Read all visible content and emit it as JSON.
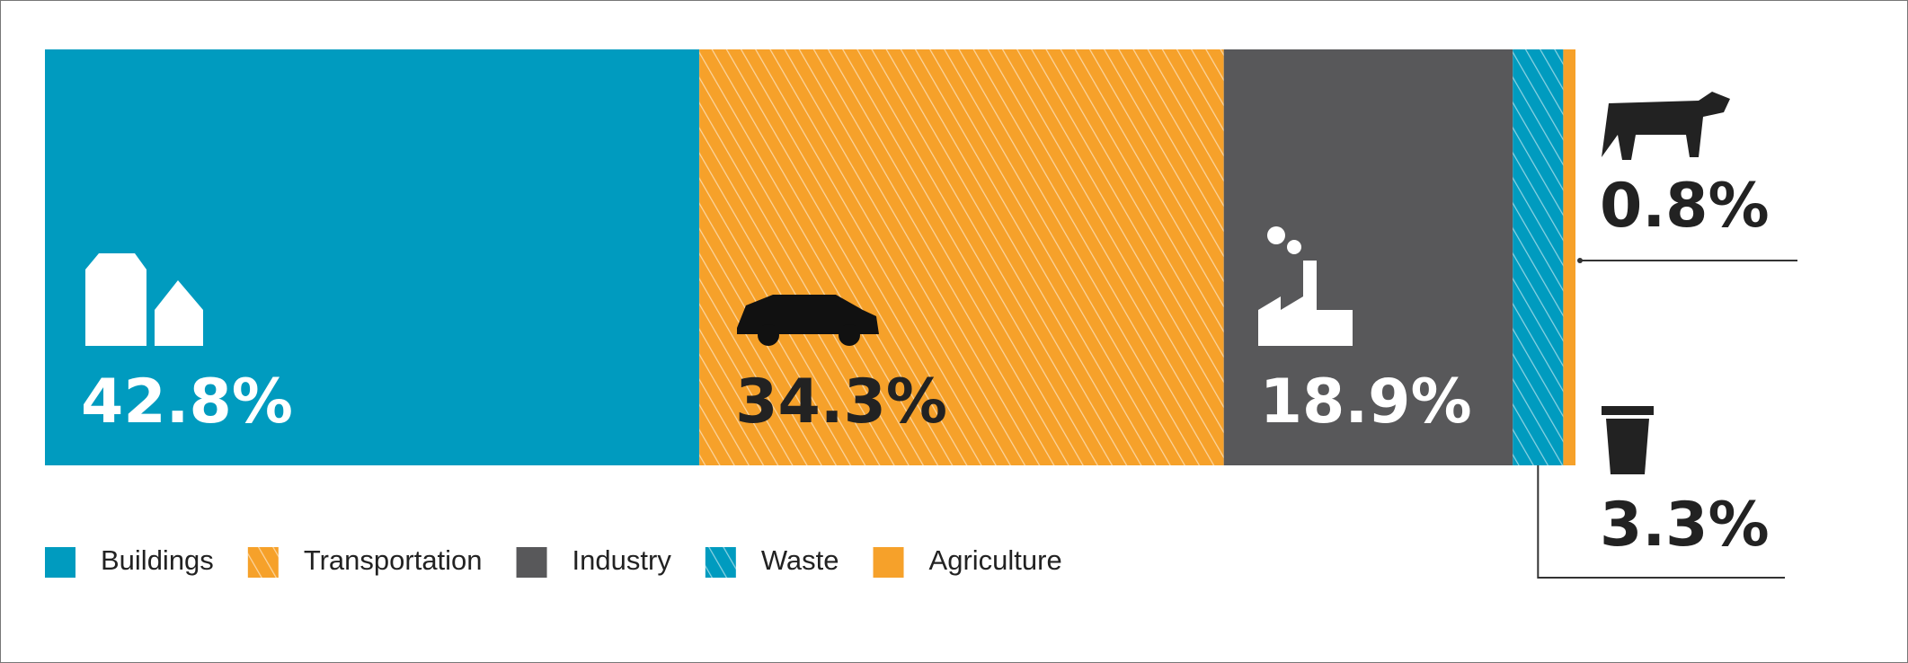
{
  "chart_data": {
    "type": "stacked-bar",
    "series": [
      {
        "name": "Buildings",
        "color": "#009bbf",
        "hatched": false,
        "values": [
          42.8
        ],
        "value_labels": [
          "42.8%"
        ]
      },
      {
        "name": "Transportation",
        "color": "#f6a12a",
        "hatched": true,
        "values": [
          34.3
        ],
        "value_labels": [
          "34.3%"
        ]
      },
      {
        "name": "Industry",
        "color": "#58585a",
        "hatched": false,
        "values": [
          18.9
        ],
        "value_labels": [
          "18.9%"
        ]
      },
      {
        "name": "Waste",
        "color": "#009bbf",
        "hatched": true,
        "values": [
          3.3
        ],
        "value_labels": [
          "3.3%"
        ]
      },
      {
        "name": "Agriculture",
        "color": "#f6a12a",
        "hatched": false,
        "values": [
          0.8
        ],
        "value_labels": [
          "0.8%"
        ]
      }
    ]
  }
}
